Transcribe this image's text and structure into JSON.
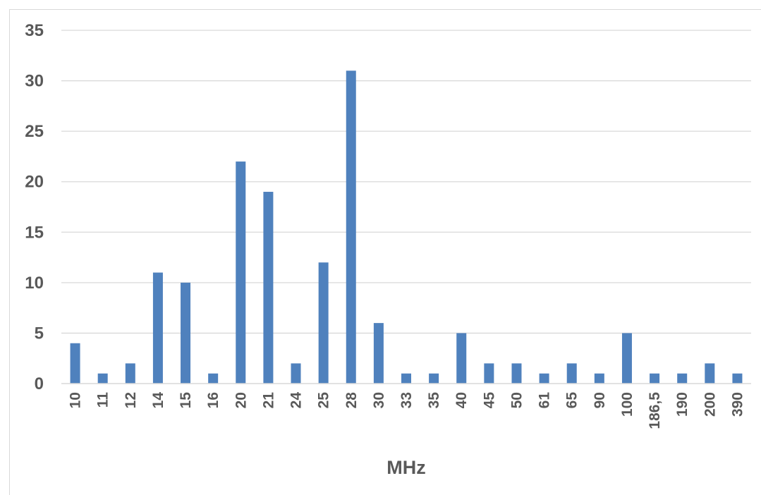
{
  "chart_data": {
    "type": "bar",
    "categories": [
      "10",
      "11",
      "12",
      "14",
      "15",
      "16",
      "20",
      "21",
      "24",
      "25",
      "28",
      "30",
      "33",
      "35",
      "40",
      "45",
      "50",
      "61",
      "65",
      "90",
      "100",
      "186,5",
      "190",
      "200",
      "390"
    ],
    "values": [
      4,
      1,
      2,
      11,
      10,
      1,
      22,
      19,
      2,
      12,
      31,
      6,
      1,
      1,
      5,
      2,
      2,
      1,
      2,
      1,
      5,
      1,
      1,
      2,
      1
    ],
    "title": "",
    "xlabel": "MHz",
    "ylabel": "",
    "ylim": [
      0,
      35
    ],
    "yticks": [
      "0",
      "5",
      "10",
      "15",
      "20",
      "25",
      "30",
      "35"
    ],
    "grid": true,
    "bar_color": "#4f81bd",
    "grid_color": "#d9d9d9"
  }
}
